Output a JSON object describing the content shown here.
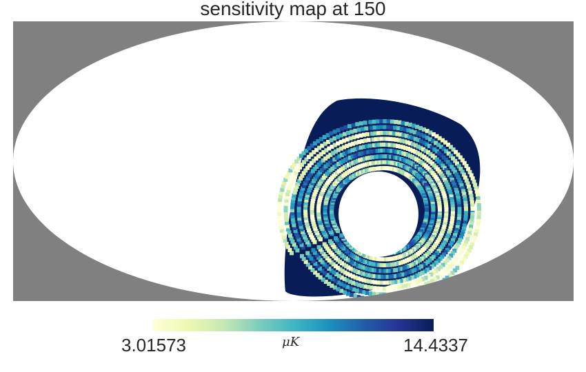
{
  "title": "sensitivity map at 150",
  "projection": "mollweide",
  "colormap": {
    "name": "YlGnBu",
    "stops": [
      "#ffffd9",
      "#edf8b1",
      "#c7e9b4",
      "#7fcdbb",
      "#41b6c4",
      "#1d91c0",
      "#225ea8",
      "#253494",
      "#081d58"
    ]
  },
  "colorbar": {
    "min_label": "3.01573",
    "max_label": "14.4337",
    "unit_label": "μK"
  },
  "colors": {
    "background": "#808080",
    "unobserved": "#ffffff"
  }
}
